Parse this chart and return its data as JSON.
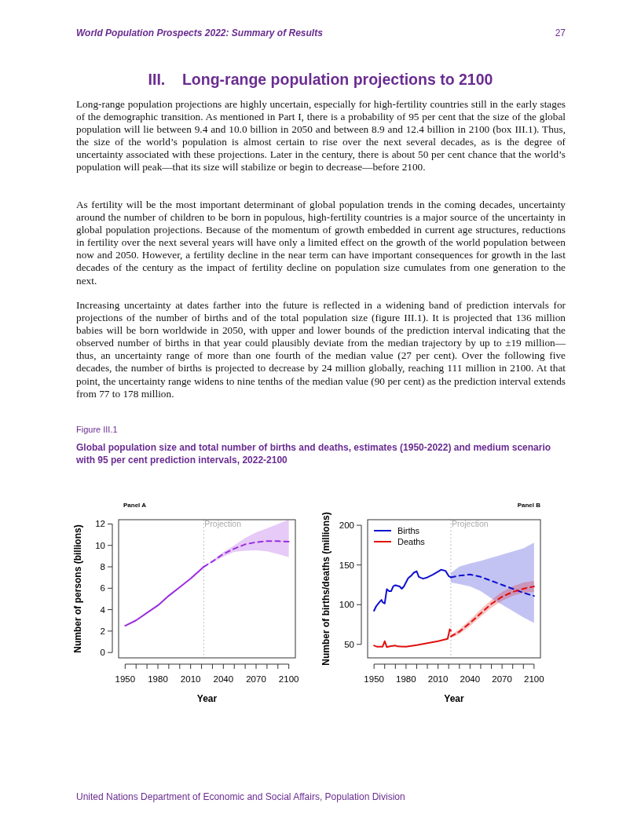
{
  "chart_data": [
    {
      "type": "line",
      "title": "Global population size and total number of births and deaths, estimates (1950-2022) and medium scenario with 95 per cent prediction intervals, 2022-2100",
      "subtitle": "Panel A",
      "xlabel": "Year",
      "ylabel": "Number of persons (billions)",
      "xlim": [
        1944,
        2106
      ],
      "ylim": [
        -0.5,
        12.4
      ],
      "xticks": [
        1950,
        {
          "value": 1960,
          "label": null
        },
        {
          "value": 1970,
          "label": null
        },
        1980,
        {
          "value": 1990,
          "label": null
        },
        {
          "value": 2000,
          "label": null
        },
        2010,
        {
          "value": 2020,
          "label": null
        },
        {
          "value": 2030,
          "label": null
        },
        2040,
        {
          "value": 2050,
          "label": null
        },
        {
          "value": 2060,
          "label": null
        },
        2070,
        {
          "value": 2080,
          "label": null
        },
        {
          "value": 2090,
          "label": null
        },
        2100
      ],
      "yticks": [
        0,
        2,
        4,
        6,
        8,
        10,
        12
      ],
      "grid": false,
      "legend": false,
      "series": [
        {
          "color": "#9b2de0",
          "line_style": "solid",
          "x": [
            1950,
            1960,
            1970,
            1980,
            1990,
            2000,
            2010,
            2022
          ],
          "values": [
            2.5,
            3.0,
            3.7,
            4.4,
            5.3,
            6.1,
            6.9,
            8.0
          ]
        },
        {
          "color": "#9b2de0",
          "line_style": "dashed",
          "x": [
            2022,
            2030,
            2040,
            2050,
            2060,
            2070,
            2080,
            2090,
            2100
          ],
          "values": [
            8.0,
            8.5,
            9.2,
            9.7,
            10.1,
            10.3,
            10.4,
            10.4,
            10.35
          ],
          "lower": [
            8.0,
            8.4,
            8.95,
            9.4,
            9.5,
            9.55,
            9.45,
            9.2,
            8.9
          ],
          "upper": [
            8.0,
            8.6,
            9.4,
            10.0,
            10.7,
            11.2,
            11.6,
            12.0,
            12.4
          ]
        }
      ],
      "ref_lines": [
        {
          "axis": "x",
          "value": 2022,
          "label": "Projection",
          "color": "#aaaaaa",
          "line_style": "dotted"
        }
      ],
      "annotations": [
        "World Population Prospects 2022: Summary of Results",
        "27",
        "III.    Long-range population projections to 2100",
        "Long-range population projections are highly uncertain, especially for high-fertility countries still in the early stages of the demographic transition. As mentioned in Part I, there is a probability of 95 per cent that the size of the global population will lie between 9.4 and 10.0 billion in 2050 and between 8.9 and 12.4 billion in 2100 (box III.1). Thus, the size of the world’s population is almost certain to rise over the next several decades, as is the degree of uncertainty associated with these projections. Later in the century, there is about 50 per cent chance that the world’s population will peak—that its size will stabilize or begin to decrease—before 2100.",
        "As fertility will be the most important determinant of global population trends in the coming decades, uncertainty around the number of children to be born in populous, high-fertility countries is a major source of the uncertainty in global population projections. Because of the momentum of growth embedded in current age structures, reductions in fertility over the next several years will have only a limited effect on the growth of the world population between now and 2050. However, a fertility decline in the near term can have important consequences for growth in the last decades of the century as the impact of fertility decline on population size cumulates from one generation to the next.",
        "Increasing uncertainty at dates farther into the future is reflected in a widening band of prediction intervals for projections of the number of births and of the total population size (figure III.1). It is projected that 136 million babies will be born worldwide in 2050, with upper and lower bounds of the prediction interval indicating that the observed number of births in that year could plausibly deviate from the median trajectory by up to ±19 million—thus, an uncertainty range of more than one fourth of the median value (27 per cent). Over the following five decades, the number of births is projected to decrease by 24 million globally, reaching 111 million in 2100. At that point, the uncertainty range widens to nine tenths of the median value (90 per cent) as the prediction interval extends from 77 to 178 million.",
        "Figure III.1",
        "United Nations Department of Economic and Social Affairs, Population Division"
      ]
    },
    {
      "type": "line",
      "subtitle": "Panel B",
      "xlabel": "Year",
      "ylabel": "Number of births/deaths (millions)",
      "xlim": [
        1944,
        2106
      ],
      "ylim": [
        33,
        207
      ],
      "xticks": [
        1950,
        {
          "value": 1960,
          "label": null
        },
        {
          "value": 1970,
          "label": null
        },
        1980,
        {
          "value": 1990,
          "label": null
        },
        {
          "value": 2000,
          "label": null
        },
        2010,
        {
          "value": 2020,
          "label": null
        },
        {
          "value": 2030,
          "label": null
        },
        2040,
        {
          "value": 2050,
          "label": null
        },
        {
          "value": 2060,
          "label": null
        },
        2070,
        {
          "value": 2080,
          "label": null
        },
        {
          "value": 2090,
          "label": null
        },
        2100
      ],
      "yticks": [
        50,
        100,
        150,
        200
      ],
      "grid": false,
      "legend": "top left",
      "series": [
        {
          "name": "Births",
          "color": "#1010d0",
          "line_style": "solid",
          "x": [
            1950,
            1952,
            1955,
            1957,
            1958,
            1960,
            1962,
            1964,
            1966,
            1968,
            1970,
            1974,
            1976,
            1978,
            1982,
            1985,
            1987,
            1990,
            1992,
            1996,
            2000,
            2005,
            2010,
            2013,
            2017,
            2020,
            2022
          ],
          "values": [
            92.3,
            98,
            103,
            106,
            103,
            101.5,
            119.6,
            117,
            117,
            123,
            124.5,
            123,
            120,
            123,
            133.4,
            136.7,
            140,
            142,
            135,
            132.7,
            134.4,
            137.6,
            141.6,
            144,
            142.6,
            136,
            134.4
          ]
        },
        {
          "name": "Deaths",
          "color": "#e01010",
          "line_style": "solid",
          "x": [
            1950,
            1953,
            1958,
            1960,
            1962,
            1965,
            1970,
            1972,
            1980,
            1990,
            2000,
            2010,
            2019,
            2021,
            2022
          ],
          "values": [
            48.5,
            47,
            47,
            54,
            46.5,
            47.5,
            48.5,
            47.5,
            47,
            49,
            51.5,
            54,
            57,
            69,
            67
          ]
        },
        {
          "color": "#1010d0",
          "line_style": "dashed",
          "x": [
            2022,
            2030,
            2040,
            2050,
            2060,
            2070,
            2080,
            2090,
            2100
          ],
          "values": [
            134.4,
            136.5,
            138,
            135,
            130,
            125,
            120,
            115,
            111
          ],
          "lower": [
            128,
            126,
            123,
            117,
            108,
            100,
            92,
            84,
            77
          ],
          "upper": [
            140,
            148,
            152,
            155,
            159,
            163,
            167,
            171,
            178
          ]
        },
        {
          "color": "#e01010",
          "line_style": "dashed",
          "x": [
            2022,
            2030,
            2040,
            2050,
            2060,
            2070,
            2080,
            2090,
            2100
          ],
          "values": [
            60,
            66,
            77,
            89,
            101,
            110,
            116,
            120,
            123
          ],
          "lower": [
            58,
            63,
            73,
            85,
            96,
            105,
            111,
            115,
            116
          ],
          "upper": [
            62,
            69,
            81,
            94,
            106,
            116,
            123,
            128,
            130
          ]
        }
      ],
      "ref_lines": [
        {
          "axis": "x",
          "value": 2022,
          "label": "Projection",
          "color": "#aaaaaa",
          "line_style": "dotted"
        }
      ]
    }
  ]
}
